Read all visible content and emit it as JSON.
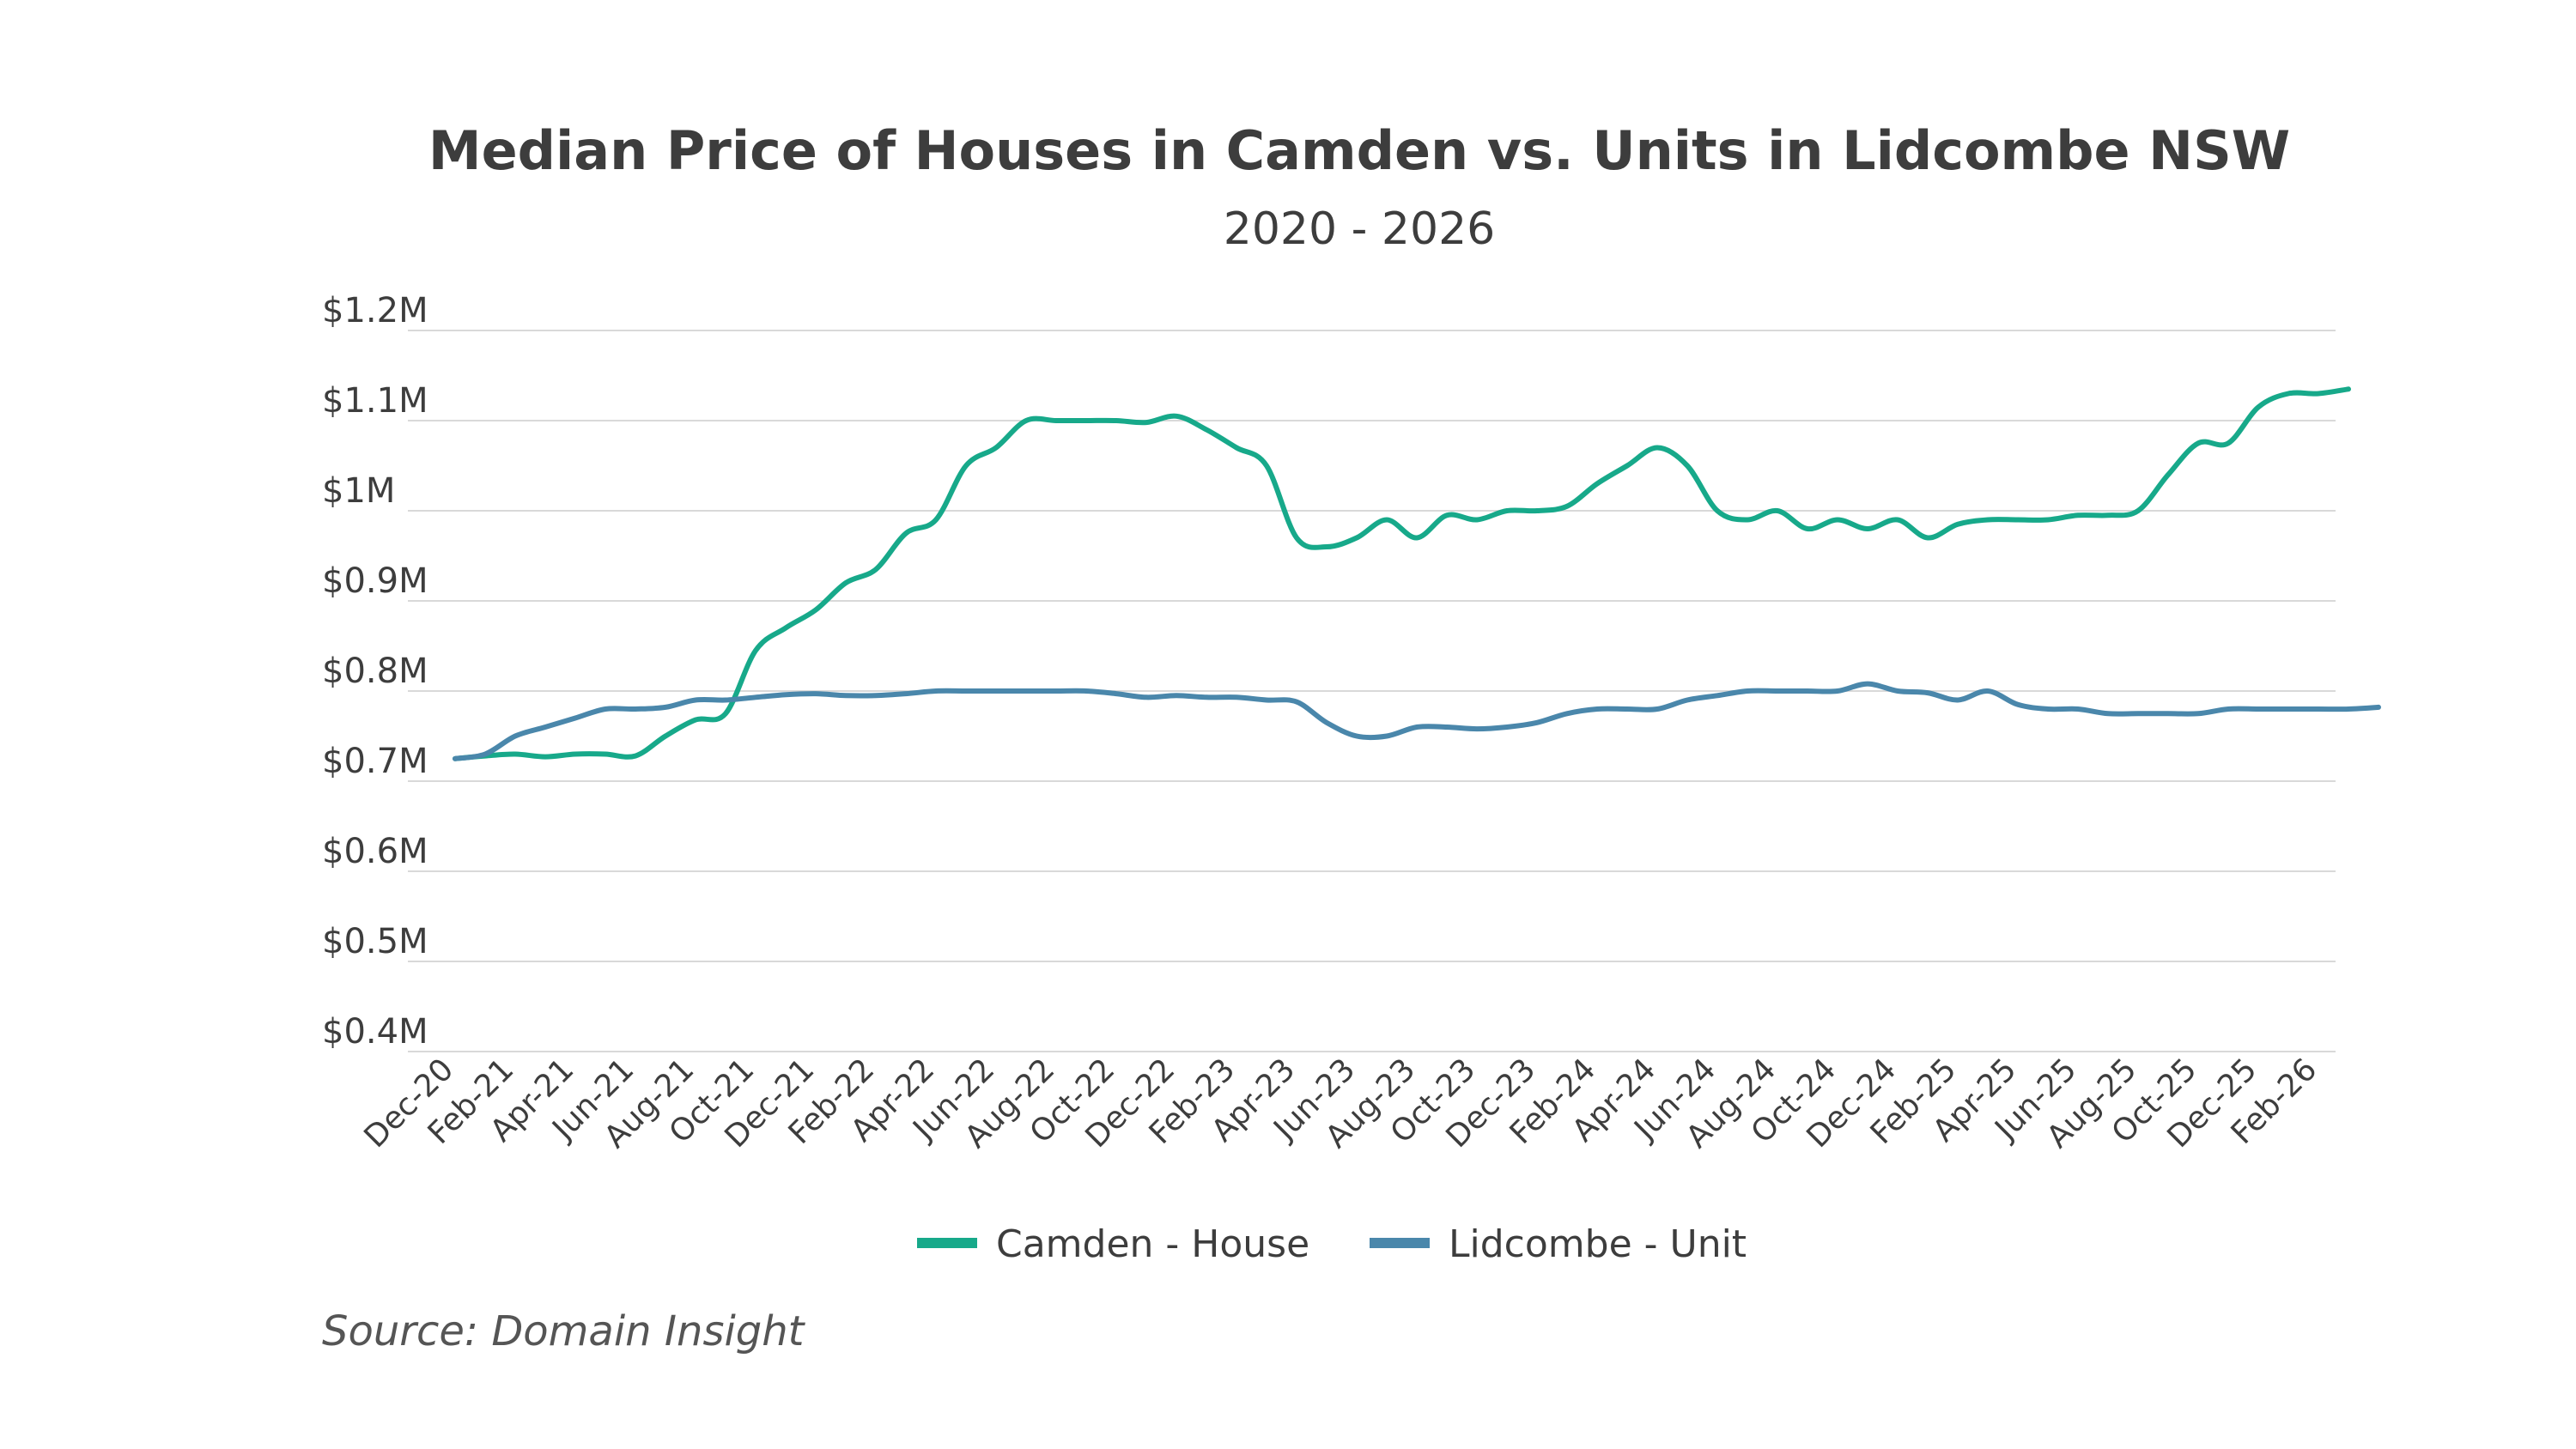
{
  "chart_data": {
    "type": "line",
    "title": "Median Price of Houses in Camden vs. Units in Lidcombe NSW",
    "subtitle": "2020 - 2026",
    "xlabel": "",
    "ylabel": "",
    "ylim": [
      0.4,
      1.2
    ],
    "y_ticks": [
      {
        "value": 1.2,
        "label": "$1.2M"
      },
      {
        "value": 1.1,
        "label": "$1.1M"
      },
      {
        "value": 1.0,
        "label": "$1M"
      },
      {
        "value": 0.9,
        "label": "$0.9M"
      },
      {
        "value": 0.8,
        "label": "$0.8M"
      },
      {
        "value": 0.7,
        "label": "$0.7M"
      },
      {
        "value": 0.6,
        "label": "$0.6M"
      },
      {
        "value": 0.5,
        "label": "$0.5M"
      },
      {
        "value": 0.4,
        "label": "$0.4M"
      }
    ],
    "x_tick_labels": [
      "Dec-20",
      "Feb-21",
      "Apr-21",
      "Jun-21",
      "Aug-21",
      "Oct-21",
      "Dec-21",
      "Feb-22",
      "Apr-22",
      "Jun-22",
      "Aug-22",
      "Oct-22",
      "Dec-22",
      "Feb-23",
      "Apr-23",
      "Jun-23",
      "Aug-23",
      "Oct-23",
      "Dec-23",
      "Feb-24",
      "Apr-24",
      "Jun-24",
      "Aug-24",
      "Oct-24",
      "Dec-24",
      "Feb-25",
      "Apr-25",
      "Jun-25",
      "Aug-25",
      "Oct-25",
      "Dec-25",
      "Feb-26"
    ],
    "x_range": [
      0,
      62
    ],
    "series": [
      {
        "name": "Camden - House",
        "color": "#17a98a",
        "points": [
          [
            0,
            0.725
          ],
          [
            1,
            0.728
          ],
          [
            2,
            0.73
          ],
          [
            3,
            0.727
          ],
          [
            4,
            0.73
          ],
          [
            5,
            0.73
          ],
          [
            6,
            0.728
          ],
          [
            7,
            0.75
          ],
          [
            8,
            0.768
          ],
          [
            9,
            0.775
          ],
          [
            10,
            0.845
          ],
          [
            11,
            0.87
          ],
          [
            12,
            0.89
          ],
          [
            13,
            0.92
          ],
          [
            14,
            0.935
          ],
          [
            15,
            0.975
          ],
          [
            16,
            0.99
          ],
          [
            17,
            1.05
          ],
          [
            18,
            1.07
          ],
          [
            19,
            1.1
          ],
          [
            20,
            1.1
          ],
          [
            21,
            1.1
          ],
          [
            22,
            1.1
          ],
          [
            23,
            1.098
          ],
          [
            24,
            1.105
          ],
          [
            25,
            1.09
          ],
          [
            26,
            1.07
          ],
          [
            27,
            1.05
          ],
          [
            28,
            0.97
          ],
          [
            29,
            0.96
          ],
          [
            30,
            0.97
          ],
          [
            31,
            0.99
          ],
          [
            32,
            0.97
          ],
          [
            33,
            0.995
          ],
          [
            34,
            0.99
          ],
          [
            35,
            1.0
          ],
          [
            36,
            1.0
          ],
          [
            37,
            1.005
          ],
          [
            38,
            1.03
          ],
          [
            39,
            1.05
          ],
          [
            40,
            1.07
          ],
          [
            41,
            1.05
          ],
          [
            42,
            1.0
          ],
          [
            43,
            0.99
          ],
          [
            44,
            1.0
          ],
          [
            45,
            0.98
          ],
          [
            46,
            0.99
          ],
          [
            47,
            0.98
          ],
          [
            48,
            0.99
          ],
          [
            49,
            0.97
          ],
          [
            50,
            0.985
          ],
          [
            51,
            0.99
          ],
          [
            52,
            0.99
          ],
          [
            53,
            0.99
          ],
          [
            54,
            0.995
          ],
          [
            55,
            0.995
          ],
          [
            56,
            1.0
          ],
          [
            57,
            1.04
          ],
          [
            58,
            1.075
          ],
          [
            59,
            1.075
          ],
          [
            60,
            1.115
          ],
          [
            61,
            1.13
          ],
          [
            62,
            1.13
          ],
          [
            63,
            1.135
          ]
        ]
      },
      {
        "name": "Lidcombe - Unit",
        "color": "#4a87ab",
        "points": [
          [
            0,
            0.725
          ],
          [
            1,
            0.73
          ],
          [
            2,
            0.75
          ],
          [
            3,
            0.76
          ],
          [
            4,
            0.77
          ],
          [
            5,
            0.78
          ],
          [
            6,
            0.78
          ],
          [
            7,
            0.782
          ],
          [
            8,
            0.79
          ],
          [
            9,
            0.79
          ],
          [
            10,
            0.793
          ],
          [
            11,
            0.796
          ],
          [
            12,
            0.797
          ],
          [
            13,
            0.795
          ],
          [
            14,
            0.795
          ],
          [
            15,
            0.797
          ],
          [
            16,
            0.8
          ],
          [
            17,
            0.8
          ],
          [
            18,
            0.8
          ],
          [
            19,
            0.8
          ],
          [
            20,
            0.8
          ],
          [
            21,
            0.8
          ],
          [
            22,
            0.797
          ],
          [
            23,
            0.793
          ],
          [
            24,
            0.795
          ],
          [
            25,
            0.793
          ],
          [
            26,
            0.793
          ],
          [
            27,
            0.79
          ],
          [
            28,
            0.788
          ],
          [
            29,
            0.765
          ],
          [
            30,
            0.75
          ],
          [
            31,
            0.75
          ],
          [
            32,
            0.76
          ],
          [
            33,
            0.76
          ],
          [
            34,
            0.758
          ],
          [
            35,
            0.76
          ],
          [
            36,
            0.765
          ],
          [
            37,
            0.775
          ],
          [
            38,
            0.78
          ],
          [
            39,
            0.78
          ],
          [
            40,
            0.78
          ],
          [
            41,
            0.79
          ],
          [
            42,
            0.795
          ],
          [
            43,
            0.8
          ],
          [
            44,
            0.8
          ],
          [
            45,
            0.8
          ],
          [
            46,
            0.8
          ],
          [
            47,
            0.808
          ],
          [
            48,
            0.8
          ],
          [
            49,
            0.798
          ],
          [
            50,
            0.79
          ],
          [
            51,
            0.8
          ],
          [
            52,
            0.785
          ],
          [
            53,
            0.78
          ],
          [
            54,
            0.78
          ],
          [
            55,
            0.775
          ],
          [
            56,
            0.775
          ],
          [
            57,
            0.775
          ],
          [
            58,
            0.775
          ],
          [
            59,
            0.78
          ],
          [
            60,
            0.78
          ],
          [
            61,
            0.78
          ],
          [
            62,
            0.78
          ],
          [
            63,
            0.78
          ],
          [
            64,
            0.782
          ]
        ]
      }
    ],
    "legend": [
      {
        "label": "Camden - House",
        "color": "#17a98a"
      },
      {
        "label": "Lidcombe - Unit",
        "color": "#4a87ab"
      }
    ],
    "source": "Source: Domain Insight"
  }
}
